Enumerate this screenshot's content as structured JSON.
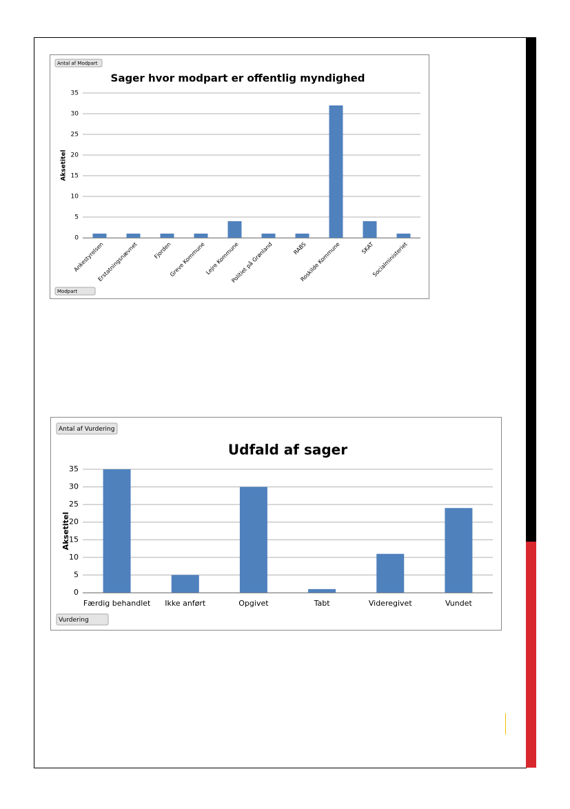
{
  "chart_data": [
    {
      "type": "bar",
      "title": "Sager hvor modpart er offentlig myndighed",
      "ylabel": "Aksetitel",
      "value_field": "Antal af Modpart",
      "axis_field": "Modpart",
      "categories": [
        "Ankestyrelsen",
        "Erstatningsnævnet",
        "Fjorden",
        "Greve Kommune",
        "Lejre Kommune",
        "Politiet på Grønland",
        "RABS",
        "Roskilde Kommune",
        "SKAT",
        "Socialministeriet"
      ],
      "values": [
        1,
        1,
        1,
        1,
        4,
        1,
        1,
        32,
        4,
        1
      ],
      "color": "#4f81bd",
      "ylim": [
        0,
        35
      ],
      "yticks": [
        0,
        5,
        10,
        15,
        20,
        25,
        30,
        35
      ],
      "grid": true
    },
    {
      "type": "bar",
      "title": "Udfald af sager",
      "ylabel": "Aksetitel",
      "value_field": "Antal af Vurdering",
      "axis_field": "Vurdering",
      "categories": [
        "Færdig behandlet",
        "Ikke anført",
        "Opgivet",
        "Tabt",
        "Videregivet",
        "Vundet"
      ],
      "values": [
        35,
        5,
        30,
        1,
        11,
        24
      ],
      "color": "#4f81bd",
      "ylim": [
        0,
        35
      ],
      "yticks": [
        0,
        5,
        10,
        15,
        20,
        25,
        30,
        35
      ],
      "grid": true
    }
  ]
}
